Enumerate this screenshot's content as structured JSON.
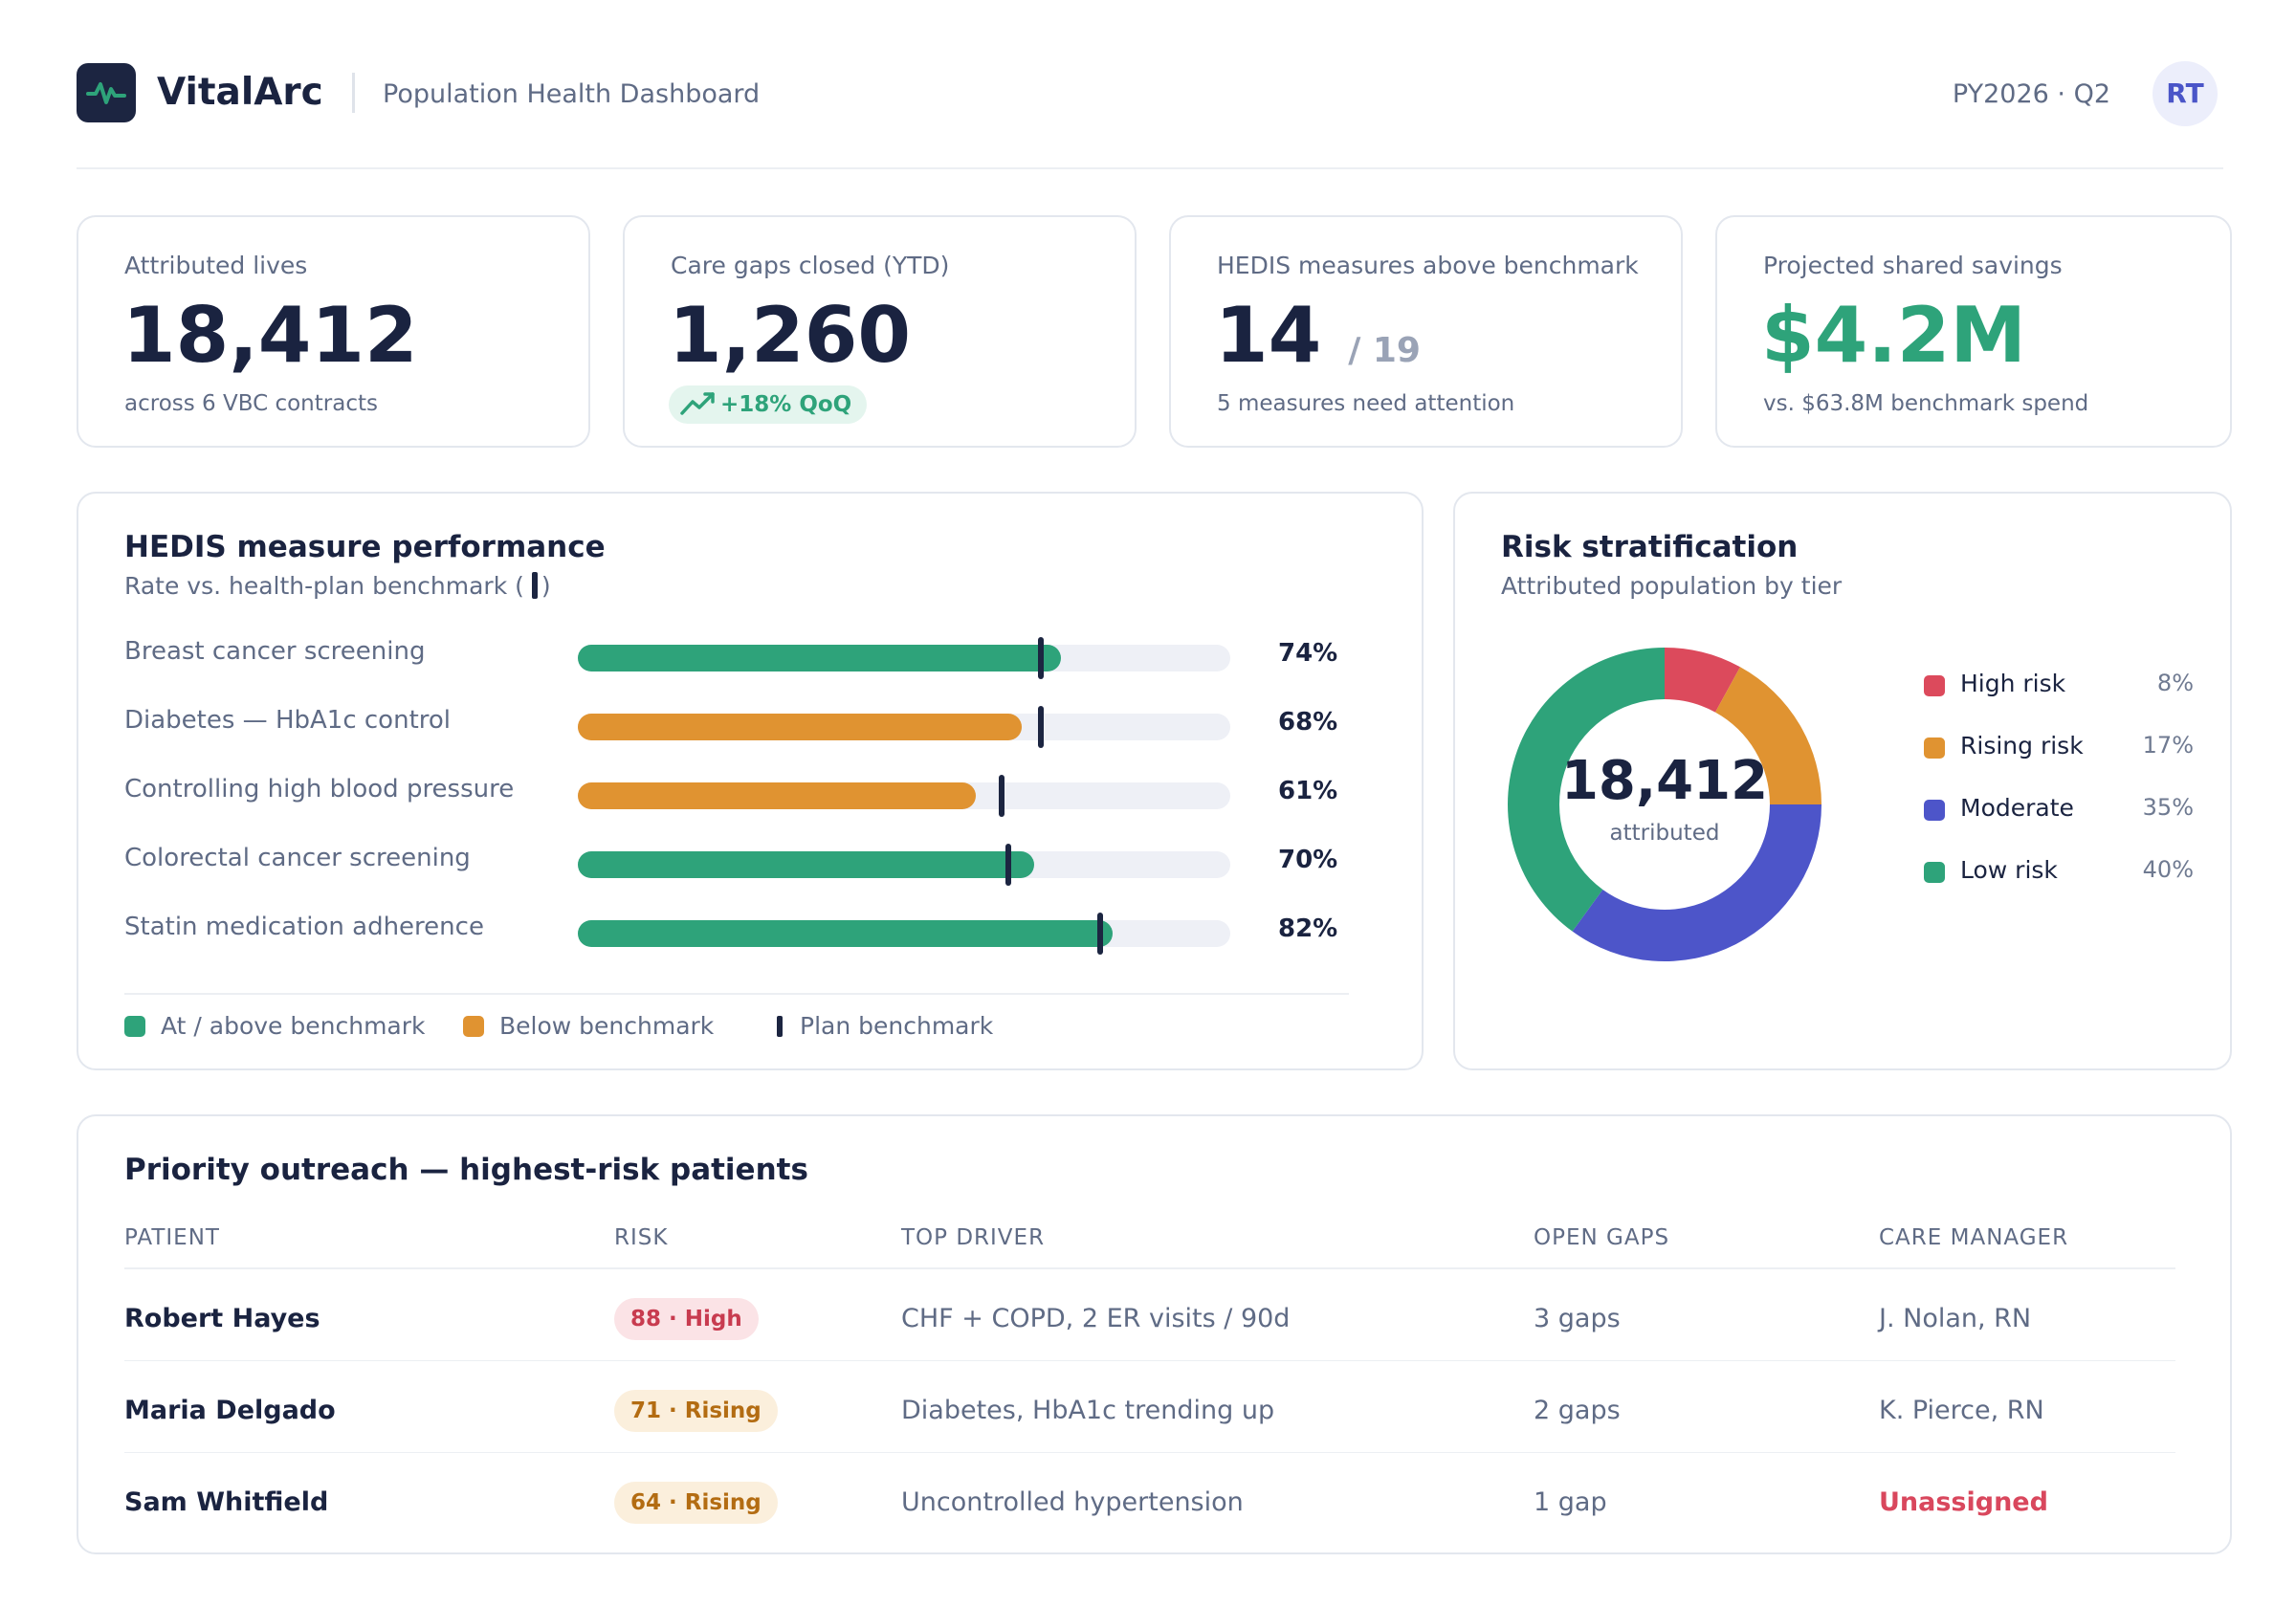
{
  "header": {
    "brand": "VitalArc",
    "subtitle": "Population Health Dashboard",
    "period": "PY2026 · Q2",
    "avatar_initials": "RT",
    "logo_icon": "pulse-icon"
  },
  "kpis": {
    "attributed": {
      "label": "Attributed lives",
      "value": "18,412",
      "sub": "across 6 VBC contracts"
    },
    "gaps": {
      "label": "Care gaps closed (YTD)",
      "value": "1,260",
      "trend": "+18% QoQ",
      "trend_icon": "trend-up-icon"
    },
    "hedis": {
      "label": "HEDIS measures above benchmark",
      "value": "14",
      "denominator": "/ 19",
      "sub": "5 measures need attention"
    },
    "savings": {
      "label": "Projected shared savings",
      "value": "$4.2M",
      "sub": "vs. $63.8M benchmark spend"
    }
  },
  "colors": {
    "above": "#2ea37a",
    "below": "#e09331",
    "benchmark": "#1c2541",
    "high": "#dc4a5c",
    "rising": "#e09331",
    "moderate": "#4d55c9",
    "low": "#2ea37a"
  },
  "hedis_panel": {
    "title": "HEDIS measure performance",
    "subtitle_before": "Rate vs. health-plan benchmark (",
    "subtitle_after": ")",
    "measures": [
      {
        "name": "Breast cancer screening",
        "rate": 74,
        "benchmark": 71,
        "status": "above",
        "label": "74%"
      },
      {
        "name": "Diabetes — HbA1c control",
        "rate": 68,
        "benchmark": 71,
        "status": "below",
        "label": "68%"
      },
      {
        "name": "Controlling high blood pressure",
        "rate": 61,
        "benchmark": 65,
        "status": "below",
        "label": "61%"
      },
      {
        "name": "Colorectal cancer screening",
        "rate": 70,
        "benchmark": 66,
        "status": "above",
        "label": "70%"
      },
      {
        "name": "Statin medication adherence",
        "rate": 82,
        "benchmark": 80,
        "status": "above",
        "label": "82%"
      }
    ],
    "legend": {
      "above": "At / above benchmark",
      "below": "Below benchmark",
      "benchmark": "Plan benchmark"
    }
  },
  "risk_panel": {
    "title": "Risk stratification",
    "subtitle": "Attributed population by tier",
    "center_value": "18,412",
    "center_caption": "attributed",
    "tiers": [
      {
        "name": "High risk",
        "pct": 8,
        "label": "8%",
        "color": "#dc4a5c"
      },
      {
        "name": "Rising risk",
        "pct": 17,
        "label": "17%",
        "color": "#e09331"
      },
      {
        "name": "Moderate",
        "pct": 35,
        "label": "35%",
        "color": "#4d55c9"
      },
      {
        "name": "Low risk",
        "pct": 40,
        "label": "40%",
        "color": "#2ea37a"
      }
    ]
  },
  "outreach": {
    "title": "Priority outreach — highest-risk patients",
    "columns": [
      "PATIENT",
      "RISK",
      "TOP DRIVER",
      "OPEN GAPS",
      "CARE MANAGER"
    ],
    "rows": [
      {
        "patient": "Robert Hayes",
        "risk": "88 · High",
        "level": "high",
        "driver": "CHF + COPD, 2 ER visits / 90d",
        "gaps": "3 gaps",
        "manager": "J. Nolan, RN"
      },
      {
        "patient": "Maria Delgado",
        "risk": "71 · Rising",
        "level": "rising",
        "driver": "Diabetes, HbA1c trending up",
        "gaps": "2 gaps",
        "manager": "K. Pierce, RN"
      },
      {
        "patient": "Sam Whitfield",
        "risk": "64 · Rising",
        "level": "rising",
        "driver": "Uncontrolled hypertension",
        "gaps": "1 gap",
        "manager": "Unassigned"
      }
    ]
  }
}
